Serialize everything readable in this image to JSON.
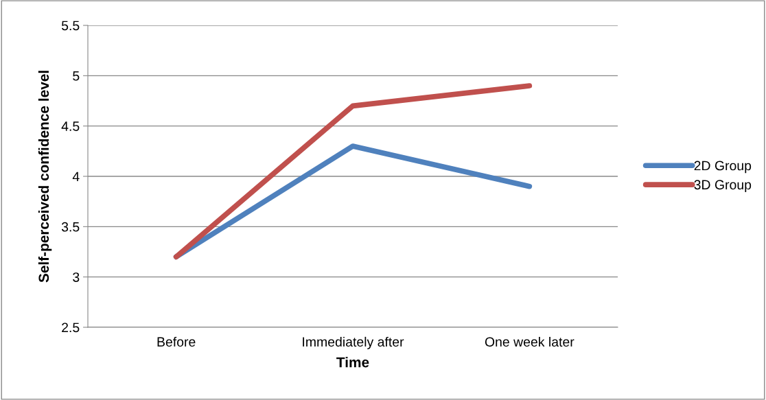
{
  "chart_data": {
    "type": "line",
    "xlabel": "Time",
    "ylabel": "Self-perceived confidence level",
    "categories": [
      "Before",
      "Immediately after",
      "One week later"
    ],
    "series": [
      {
        "name": "2D Group",
        "color": "#4f81bd",
        "values": [
          3.2,
          4.3,
          3.9
        ]
      },
      {
        "name": "3D Group",
        "color": "#c0504d",
        "values": [
          3.2,
          4.7,
          4.9
        ]
      }
    ],
    "ylim": [
      2.5,
      5.5
    ],
    "yticks": [
      2.5,
      3,
      3.5,
      4,
      4.5,
      5,
      5.5
    ],
    "grid": "y",
    "legend": "right",
    "marker": "none",
    "line_style": "solid"
  }
}
